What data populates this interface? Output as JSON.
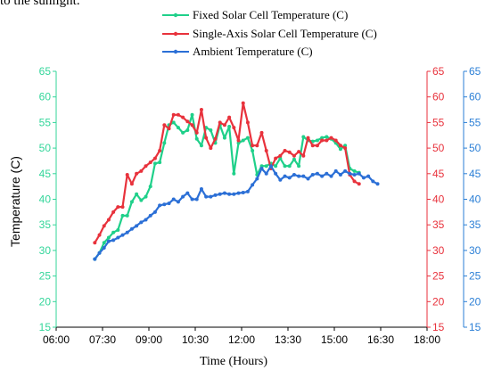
{
  "page_text": {
    "fragment": "to the sunlight."
  },
  "colors": {
    "fixed": "#1fd08a",
    "single": "#e8323c",
    "ambient": "#2b6fd6",
    "left_axis": "#33d69a",
    "middle_axis": "#e8323c",
    "right_axis": "#2b7fd6"
  },
  "chart_data": {
    "type": "line",
    "title": "",
    "xlabel": "Time (Hours)",
    "ylabel": "Temperature (C)",
    "xlim": [
      "06:00",
      "18:00"
    ],
    "ylim": [
      15,
      65
    ],
    "x_ticks": [
      "06:00",
      "07:30",
      "09:00",
      "10:30",
      "12:00",
      "13:30",
      "15:00",
      "16:30",
      "18:00"
    ],
    "y_ticks": [
      15,
      20,
      25,
      30,
      35,
      40,
      45,
      50,
      55,
      60,
      65
    ],
    "y_axes": [
      {
        "position": "left",
        "ticks": [
          15,
          20,
          25,
          30,
          35,
          40,
          45,
          50,
          55,
          60,
          65
        ],
        "color": "#33d69a"
      },
      {
        "position": "right-inner",
        "ticks": [
          15,
          20,
          25,
          30,
          35,
          40,
          45,
          50,
          55,
          60,
          65
        ],
        "color": "#e8323c"
      },
      {
        "position": "right-outer",
        "ticks": [
          15,
          20,
          25,
          30,
          35,
          40,
          45,
          50,
          55,
          60,
          65
        ],
        "color": "#2b7fd6"
      }
    ],
    "legend_position": "top-center",
    "grid": false,
    "series": [
      {
        "name": "Fixed Solar Cell Temperature (C)",
        "color": "#1fd08a",
        "x": [
          "07:15",
          "07:24",
          "07:33",
          "07:42",
          "07:51",
          "08:00",
          "08:09",
          "08:18",
          "08:27",
          "08:36",
          "08:45",
          "08:54",
          "09:03",
          "09:12",
          "09:21",
          "09:30",
          "09:39",
          "09:48",
          "09:57",
          "10:06",
          "10:15",
          "10:24",
          "10:33",
          "10:42",
          "10:51",
          "11:00",
          "11:09",
          "11:18",
          "11:27",
          "11:36",
          "11:45",
          "11:54",
          "12:03",
          "12:12",
          "12:21",
          "12:30",
          "12:39",
          "12:48",
          "12:57",
          "13:06",
          "13:15",
          "13:24",
          "13:33",
          "13:42",
          "13:51",
          "14:00",
          "14:09",
          "14:18",
          "14:27",
          "14:36",
          "14:45",
          "14:54",
          "15:03",
          "15:12",
          "15:21",
          "15:30",
          "15:39",
          "15:48",
          "15:57",
          "16:06",
          "16:15",
          "16:24",
          "16:33",
          "16:42",
          "16:51",
          "17:00",
          "17:09"
        ],
        "y": [
          28.3,
          29.5,
          31.5,
          32.5,
          33.5,
          34.0,
          36.8,
          36.8,
          39.5,
          41.0,
          39.8,
          40.5,
          42.5,
          47.0,
          47.2,
          51.0,
          54.5,
          55.0,
          54.0,
          53.0,
          53.5,
          56.5,
          51.8,
          50.5,
          54.0,
          53.5,
          51.0,
          54.5,
          52.0,
          54.2,
          45.0,
          51.0,
          51.5,
          52.0,
          49.5,
          44.8,
          46.5,
          46.5,
          47.0,
          46.5,
          48.0,
          46.5,
          46.5,
          47.8,
          46.5,
          52.2,
          51.5,
          51.3,
          51.5,
          52.0,
          52.2,
          51.8,
          51.0,
          49.8,
          50.5,
          46.0,
          45.5,
          45.2,
          null,
          null,
          null,
          null,
          null,
          null,
          null,
          null,
          null
        ]
      },
      {
        "name": "Single-Axis Solar Cell Temperature (C)",
        "color": "#e8323c",
        "x": [
          "07:15",
          "07:24",
          "07:33",
          "07:42",
          "07:51",
          "08:00",
          "08:09",
          "08:18",
          "08:27",
          "08:36",
          "08:45",
          "08:54",
          "09:03",
          "09:12",
          "09:21",
          "09:30",
          "09:39",
          "09:48",
          "09:57",
          "10:06",
          "10:15",
          "10:24",
          "10:33",
          "10:42",
          "10:51",
          "11:00",
          "11:09",
          "11:18",
          "11:27",
          "11:36",
          "11:45",
          "11:54",
          "12:03",
          "12:12",
          "12:21",
          "12:30",
          "12:39",
          "12:48",
          "12:57",
          "13:06",
          "13:15",
          "13:24",
          "13:33",
          "13:42",
          "13:51",
          "14:00",
          "14:09",
          "14:18",
          "14:27",
          "14:36",
          "14:45",
          "14:54",
          "15:03",
          "15:12",
          "15:21",
          "15:30",
          "15:39",
          "15:48",
          "15:57",
          "16:06",
          "16:15",
          "16:24",
          "16:33",
          "16:42",
          "16:51",
          "17:00",
          "17:09"
        ],
        "y": [
          31.5,
          33.0,
          34.8,
          36.0,
          37.5,
          38.5,
          38.5,
          44.8,
          43.0,
          45.0,
          45.5,
          46.5,
          47.2,
          48.0,
          49.5,
          54.5,
          53.8,
          56.5,
          56.5,
          56.0,
          55.2,
          54.5,
          53.0,
          57.5,
          52.0,
          50.0,
          51.8,
          55.0,
          54.5,
          56.0,
          54.0,
          51.5,
          58.8,
          55.0,
          50.5,
          50.5,
          53.0,
          49.5,
          46.0,
          48.0,
          48.5,
          49.5,
          49.2,
          48.5,
          49.3,
          48.5,
          52.0,
          50.5,
          50.5,
          51.5,
          51.5,
          52.0,
          51.5,
          50.5,
          50.0,
          44.8,
          43.5,
          43.0,
          null,
          null,
          null,
          null,
          null,
          null,
          null,
          null,
          null
        ]
      },
      {
        "name": "Ambient  Temperature (C)",
        "color": "#2b6fd6",
        "x": [
          "07:15",
          "07:24",
          "07:33",
          "07:42",
          "07:51",
          "08:00",
          "08:09",
          "08:18",
          "08:27",
          "08:36",
          "08:45",
          "08:54",
          "09:03",
          "09:12",
          "09:21",
          "09:30",
          "09:39",
          "09:48",
          "09:57",
          "10:06",
          "10:15",
          "10:24",
          "10:33",
          "10:42",
          "10:51",
          "11:00",
          "11:09",
          "11:18",
          "11:27",
          "11:36",
          "11:45",
          "11:54",
          "12:03",
          "12:12",
          "12:21",
          "12:30",
          "12:39",
          "12:48",
          "12:57",
          "13:06",
          "13:15",
          "13:24",
          "13:33",
          "13:42",
          "13:51",
          "14:00",
          "14:09",
          "14:18",
          "14:27",
          "14:36",
          "14:45",
          "14:54",
          "15:03",
          "15:12",
          "15:21",
          "15:30",
          "15:39",
          "15:48",
          "15:57",
          "16:06",
          "16:15",
          "16:24",
          "16:33",
          "16:42",
          "16:51",
          "17:00",
          "17:09"
        ],
        "y": [
          28.3,
          29.5,
          30.5,
          31.8,
          32.0,
          32.5,
          33.0,
          33.5,
          34.2,
          34.8,
          35.5,
          36.0,
          36.8,
          37.5,
          38.8,
          39.0,
          39.2,
          40.0,
          39.5,
          40.5,
          41.2,
          40.0,
          40.0,
          42.0,
          40.5,
          40.5,
          40.8,
          41.0,
          41.2,
          41.0,
          41.0,
          41.2,
          41.3,
          41.5,
          42.8,
          44.0,
          46.0,
          45.0,
          46.5,
          45.0,
          43.8,
          44.5,
          44.2,
          44.8,
          44.5,
          44.5,
          44.0,
          44.8,
          45.0,
          44.5,
          45.0,
          44.5,
          45.5,
          44.8,
          45.5,
          45.0,
          44.8,
          45.0,
          44.2,
          44.5,
          43.5,
          43.0,
          null,
          null,
          null,
          null,
          null
        ]
      }
    ]
  }
}
